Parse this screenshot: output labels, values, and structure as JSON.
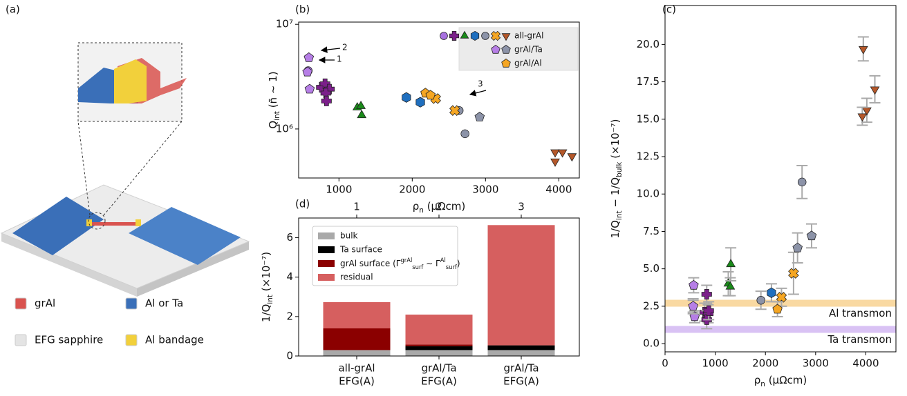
{
  "figure": {
    "panel_labels": [
      "(a)",
      "(b)",
      "(c)",
      "(d)"
    ]
  },
  "diagram": {
    "legend": [
      {
        "label": "grAl",
        "color": "#d9534f"
      },
      {
        "label": "Al or Ta",
        "color": "#3a6fb8"
      },
      {
        "label": "EFG sapphire",
        "color": "#e4e4e4"
      },
      {
        "label": "Al bandage",
        "color": "#f2d03b"
      }
    ]
  },
  "chart_data": [
    {
      "type": "scatter",
      "log_y": true,
      "xlabel": [
        {
          "t": "ρ"
        },
        {
          "t": "n",
          "s": "sub"
        },
        {
          "t": " (μΩcm)"
        }
      ],
      "ylabel": [
        {
          "t": "Q"
        },
        {
          "t": "int",
          "s": "sub"
        },
        {
          "t": " (n̄ ∼ 1)"
        }
      ],
      "xlim": [
        450,
        4280
      ],
      "xticks": [
        1000,
        2000,
        3000,
        4000
      ],
      "ylim": [
        340000,
        10500000
      ],
      "yticks": [
        {
          "value": 1000000,
          "label": "10⁶"
        },
        {
          "value": 10000000,
          "label": "10⁷"
        }
      ],
      "legend_groups": [
        "all-grAl",
        "grAl/Ta",
        "grAl/Al"
      ],
      "legend_loc": "upper right",
      "annotations": [
        "1",
        "2",
        "3"
      ],
      "series": [
        {
          "group": 0,
          "marker": "circle",
          "color": "#a872e0",
          "x": [
            580
          ],
          "y": [
            3600000
          ]
        },
        {
          "group": 0,
          "marker": "plus",
          "color": "#7b1f8a",
          "x": [
            760,
            810,
            870,
            820,
            830
          ],
          "y": [
            2500000,
            2700000,
            2400000,
            2200000,
            1850000
          ]
        },
        {
          "group": 0,
          "marker": "tri-up",
          "color": "#1a8a1a",
          "x": [
            1250,
            1300,
            1310
          ],
          "y": [
            1600000,
            1650000,
            1350000
          ]
        },
        {
          "group": 0,
          "marker": "hex",
          "color": "#1f6fbf",
          "x": [
            1920,
            2110
          ],
          "y": [
            2000000,
            1800000
          ]
        },
        {
          "group": 0,
          "marker": "circle",
          "color": "#8c93a8",
          "x": [
            2640,
            2720
          ],
          "y": [
            1500000,
            900000
          ]
        },
        {
          "group": 0,
          "marker": "x",
          "color": "#f5a623",
          "x": [
            2320,
            2580
          ],
          "y": [
            1950000,
            1500000
          ]
        },
        {
          "group": 0,
          "marker": "tri-down",
          "color": "#b5582a",
          "x": [
            3950,
            4050,
            3950,
            4180
          ],
          "y": [
            600000,
            600000,
            490000,
            550000
          ]
        },
        {
          "group": 1,
          "marker": "pentagon",
          "color": "#b67ee6",
          "x": [
            590,
            570,
            600
          ],
          "y": [
            4800000,
            3500000,
            2400000
          ]
        },
        {
          "group": 1,
          "marker": "pentagon",
          "color": "#8c93a8",
          "x": [
            2920
          ],
          "y": [
            1300000
          ]
        },
        {
          "group": 2,
          "marker": "pentagon",
          "color": "#f5a623",
          "x": [
            2180,
            2250
          ],
          "y": [
            2200000,
            2100000
          ]
        }
      ]
    },
    {
      "type": "scatter",
      "xlabel": [
        {
          "t": "ρ"
        },
        {
          "t": "n",
          "s": "sub"
        },
        {
          "t": " (μΩcm)"
        }
      ],
      "ylabel": [
        {
          "t": "1/Q"
        },
        {
          "t": "int",
          "s": "sub"
        },
        {
          "t": " − 1/Q"
        },
        {
          "t": "bulk",
          "s": "sub"
        },
        {
          "t": " (×10⁻⁷)"
        }
      ],
      "xlim": [
        0,
        4600
      ],
      "xticks": [
        0,
        1000,
        2000,
        3000,
        4000
      ],
      "ylim": [
        -0.55,
        22.6
      ],
      "yticks": [
        {
          "value": 0,
          "label": "0.0"
        },
        {
          "value": 2.5,
          "label": "2.5"
        },
        {
          "value": 5,
          "label": "5.0"
        },
        {
          "value": 7.5,
          "label": "7.5"
        },
        {
          "value": 10,
          "label": "10.0"
        },
        {
          "value": 12.5,
          "label": "12.5"
        },
        {
          "value": 15,
          "label": "15.0"
        },
        {
          "value": 17.5,
          "label": "17.5"
        },
        {
          "value": 20,
          "label": "20.0"
        }
      ],
      "bands": [
        {
          "label": "Al transmon",
          "value": 2.7,
          "color": "#f7c97a"
        },
        {
          "label": "Ta transmon",
          "value": 0.95,
          "color": "#c9a8f0"
        }
      ],
      "series": [
        {
          "group": 0,
          "marker": "circle",
          "color": "#a872e0",
          "x": [
            560
          ],
          "y": [
            2.5
          ],
          "err": [
            0.4
          ]
        },
        {
          "group": 0,
          "marker": "plus",
          "color": "#7b1f8a",
          "x": [
            830,
            790,
            860,
            830,
            870
          ],
          "y": [
            3.3,
            2.1,
            2.0,
            1.6,
            2.2
          ],
          "err": [
            0.6,
            0.6,
            0.6,
            0.6,
            0.6
          ]
        },
        {
          "group": 0,
          "marker": "tri-up",
          "color": "#1a8a1a",
          "x": [
            1260,
            1310,
            1300
          ],
          "y": [
            4.0,
            5.3,
            3.8
          ],
          "err": [
            0.8,
            1.1,
            0.6
          ]
        },
        {
          "group": 0,
          "marker": "hex",
          "color": "#1f6fbf",
          "x": [
            2120
          ],
          "y": [
            3.4
          ],
          "err": [
            0.6
          ]
        },
        {
          "group": 0,
          "marker": "circle",
          "color": "#8c93a8",
          "x": [
            2730,
            1910
          ],
          "y": [
            10.8,
            2.9
          ],
          "err": [
            1.1,
            0.6
          ]
        },
        {
          "group": 0,
          "marker": "x",
          "color": "#f5a623",
          "x": [
            2560,
            2320
          ],
          "y": [
            4.7,
            3.1
          ],
          "err": [
            1.4,
            0.6
          ]
        },
        {
          "group": 0,
          "marker": "tri-down",
          "color": "#b5582a",
          "x": [
            3950,
            4020,
            3930,
            4180
          ],
          "y": [
            19.7,
            15.6,
            15.2,
            17.0
          ],
          "err": [
            0.8,
            0.8,
            0.6,
            0.9
          ]
        },
        {
          "group": 1,
          "marker": "pentagon",
          "color": "#b67ee6",
          "x": [
            570,
            590,
            560
          ],
          "y": [
            3.9,
            1.8,
            2.5
          ],
          "err": [
            0.5,
            0.4,
            0.5
          ]
        },
        {
          "group": 1,
          "marker": "pentagon",
          "color": "#8c93a8",
          "x": [
            2640,
            2920
          ],
          "y": [
            6.4,
            7.2
          ],
          "err": [
            1.0,
            0.8
          ]
        },
        {
          "group": 2,
          "marker": "pentagon",
          "color": "#f5a623",
          "x": [
            2240
          ],
          "y": [
            2.3
          ],
          "err": [
            0.5
          ]
        }
      ]
    },
    {
      "type": "bar",
      "stacked": true,
      "categories": [
        "all-grAl",
        "grAl/Ta",
        "grAl/Ta"
      ],
      "category_sublabels": [
        "EFG(A)",
        "EFG(A)",
        "EFG(A)"
      ],
      "top_labels": [
        "1",
        "2",
        "3"
      ],
      "ylabel": [
        {
          "t": "1/Q"
        },
        {
          "t": "int",
          "s": "sub"
        },
        {
          "t": " (×10⁻⁷)"
        }
      ],
      "ylim": [
        0,
        7.0
      ],
      "yticks": [
        0,
        2,
        4,
        6
      ],
      "legend_loc": "upper left",
      "series": [
        {
          "name": "bulk",
          "color": "#a9a9a9",
          "values": [
            0.3,
            0.3,
            0.3
          ]
        },
        {
          "name": "Ta surface",
          "color": "#000000",
          "values": [
            0,
            0.2,
            0.24
          ]
        },
        {
          "name": [
            {
              "t": "grAl surface ("
            },
            {
              "t": "Γ"
            },
            {
              "t": "grAl",
              "s": "sup"
            },
            {
              "t": "surf",
              "s": "sub"
            },
            {
              "t": " ∼ Γ"
            },
            {
              "t": "Al",
              "s": "sup"
            },
            {
              "t": "surf",
              "s": "sub"
            },
            {
              "t": ")"
            }
          ],
          "color": "#8b0000",
          "values": [
            1.1,
            0.08,
            0
          ]
        },
        {
          "name": "residual",
          "color": "#d65f5f",
          "values": [
            1.33,
            1.52,
            6.1
          ]
        }
      ]
    }
  ]
}
